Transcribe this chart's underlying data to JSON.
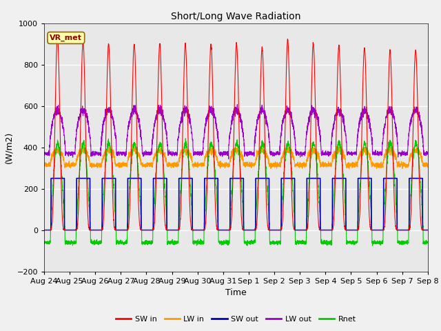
{
  "title": "Short/Long Wave Radiation",
  "xlabel": "Time",
  "ylabel": "(W/m2)",
  "ylim": [
    -200,
    1000
  ],
  "n_days": 15,
  "annotation": "VR_met",
  "tick_labels": [
    "Aug 24",
    "Aug 25",
    "Aug 26",
    "Aug 27",
    "Aug 28",
    "Aug 29",
    "Aug 30",
    "Aug 31",
    "Sep 1",
    "Sep 2",
    "Sep 3",
    "Sep 4",
    "Sep 5",
    "Sep 6",
    "Sep 7",
    "Sep 8"
  ],
  "legend_entries": [
    "SW in",
    "LW in",
    "SW out",
    "LW out",
    "Rnet"
  ],
  "colors": {
    "SW_in": "#ff0000",
    "LW_in": "#ff9900",
    "SW_out": "#0000bb",
    "LW_out": "#9900cc",
    "Rnet": "#00cc00"
  },
  "bg_color": "#e8e8e8",
  "fig_bg_color": "#f0f0f0",
  "grid_color": "#ffffff",
  "sw_peaks": [
    940,
    910,
    900,
    900,
    900,
    900,
    900,
    900,
    880,
    920,
    900,
    890,
    880,
    870,
    870
  ],
  "lw_in_base": 315,
  "lw_out_base": 370,
  "rnet_night": -60,
  "rnet_day_peak": 420
}
